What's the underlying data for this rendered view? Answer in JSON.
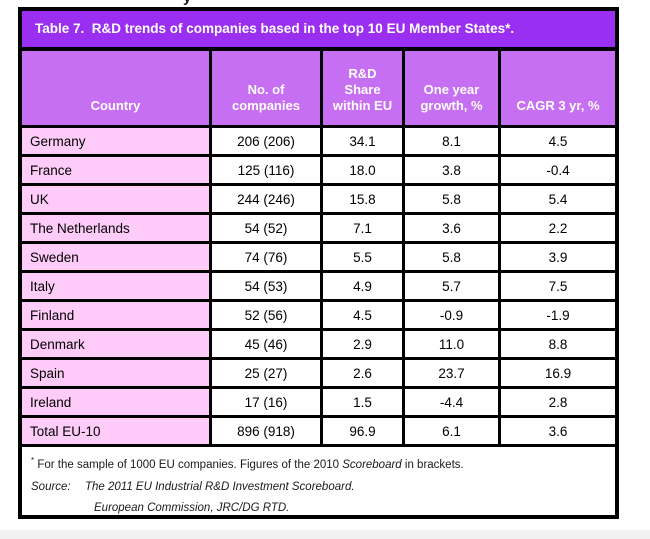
{
  "artifacts": {
    "top_fragment": "y"
  },
  "table": {
    "title": "Table 7.  R&D trends of companies based in the top 10 EU Member States*.",
    "columns": [
      "Country",
      "No. of\ncompanies",
      "R&D\nShare\nwithin EU",
      "One year\ngrowth, %",
      "CAGR 3 yr, %"
    ],
    "rows": [
      {
        "country": "Germany",
        "companies": "206 (206)",
        "rd_share": "34.1",
        "one_year_growth": "8.1",
        "cagr_3yr": "4.5"
      },
      {
        "country": "France",
        "companies": "125 (116)",
        "rd_share": "18.0",
        "one_year_growth": "3.8",
        "cagr_3yr": "-0.4"
      },
      {
        "country": "UK",
        "companies": "244 (246)",
        "rd_share": "15.8",
        "one_year_growth": "5.8",
        "cagr_3yr": "5.4"
      },
      {
        "country": "The Netherlands",
        "companies": "54 (52)",
        "rd_share": "7.1",
        "one_year_growth": "3.6",
        "cagr_3yr": "2.2"
      },
      {
        "country": "Sweden",
        "companies": "74 (76)",
        "rd_share": "5.5",
        "one_year_growth": "5.8",
        "cagr_3yr": "3.9"
      },
      {
        "country": "Italy",
        "companies": "54 (53)",
        "rd_share": "4.9",
        "one_year_growth": "5.7",
        "cagr_3yr": "7.5"
      },
      {
        "country": "Finland",
        "companies": "52 (56)",
        "rd_share": "4.5",
        "one_year_growth": "-0.9",
        "cagr_3yr": "-1.9"
      },
      {
        "country": "Denmark",
        "companies": "45 (46)",
        "rd_share": "2.9",
        "one_year_growth": "11.0",
        "cagr_3yr": "8.8"
      },
      {
        "country": "Spain",
        "companies": "25 (27)",
        "rd_share": "2.6",
        "one_year_growth": "23.7",
        "cagr_3yr": "16.9"
      },
      {
        "country": "Ireland",
        "companies": "17 (16)",
        "rd_share": "1.5",
        "one_year_growth": "-4.4",
        "cagr_3yr": "2.8"
      },
      {
        "country": "Total EU-10",
        "companies": "896 (918)",
        "rd_share": "96.9",
        "one_year_growth": "6.1",
        "cagr_3yr": "3.6"
      }
    ],
    "footnote": {
      "marker": "*",
      "prefix": " For the sample of 1000 EU companies. Figures of the 2010 ",
      "italic_word": "Scoreboard",
      "suffix": " in brackets."
    },
    "source": {
      "label": "Source:",
      "line1": "The 2011 EU Industrial R&D Investment Scoreboard.",
      "line2": "European Commission, JRC/DG RTD."
    }
  },
  "colors": {
    "title_bg": "#9a2ff2",
    "header_bg": "#c76ff2",
    "country_bg": "#ffccf9",
    "grid": "#000000"
  }
}
